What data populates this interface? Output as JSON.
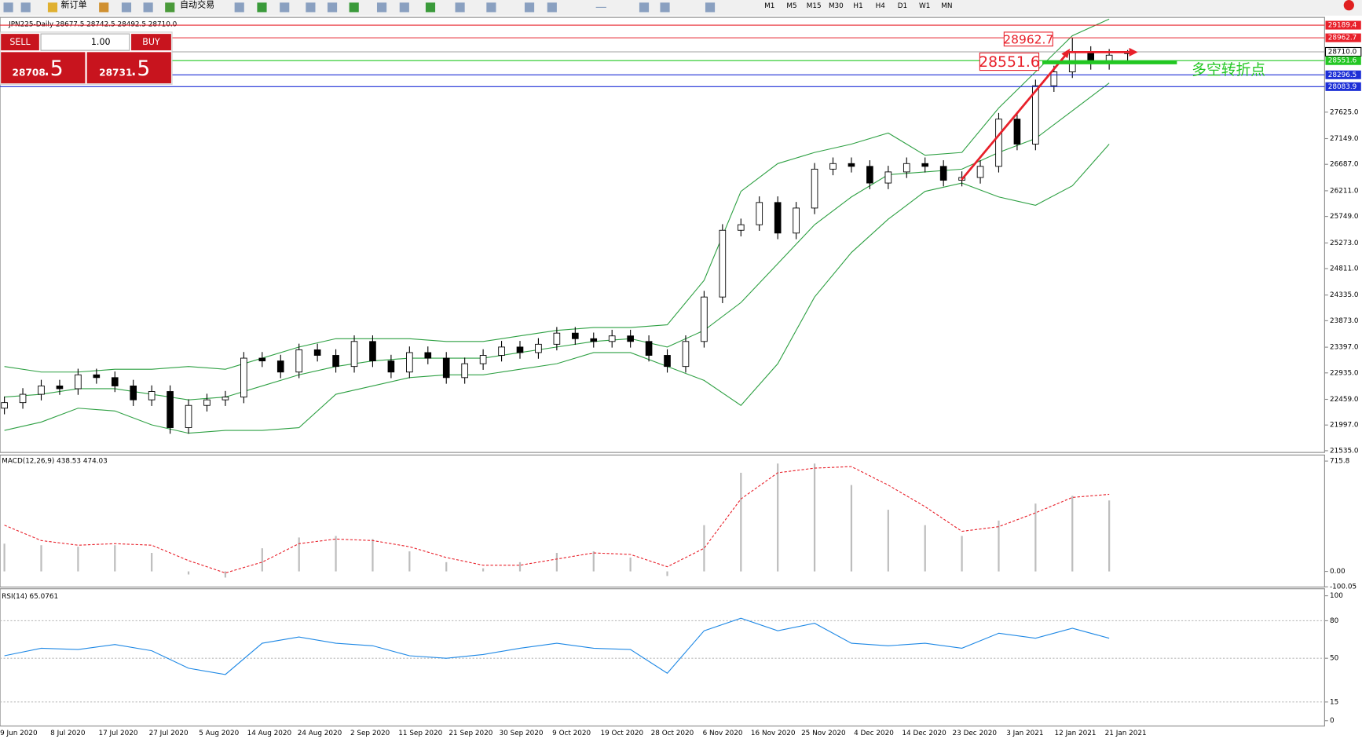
{
  "toolbar": {
    "new_order": "新订单",
    "auto_trading": "自动交易",
    "timeframes": [
      "M1",
      "M5",
      "M15",
      "M30",
      "H1",
      "H4",
      "D1",
      "W1",
      "MN"
    ]
  },
  "trade_panel": {
    "sell": "SELL",
    "lot": "1.00",
    "buy": "BUY",
    "bid_main": "28708",
    "bid_frac": ".5",
    "ask_main": "28731",
    "ask_frac": ".5"
  },
  "chart_data": [
    {
      "type": "candlestick",
      "title": "JPN225-Daily  28677.5 28742.5 28492.5 28710.0",
      "xtick_labels": [
        "9 Jun 2020",
        "8 Jul 2020",
        "17 Jul 2020",
        "27 Jul 2020",
        "5 Aug 2020",
        "14 Aug 2020",
        "24 Aug 2020",
        "2 Sep 2020",
        "11 Sep 2020",
        "21 Sep 2020",
        "30 Sep 2020",
        "9 Oct 2020",
        "19 Oct 2020",
        "28 Oct 2020",
        "6 Nov 2020",
        "16 Nov 2020",
        "25 Nov 2020",
        "4 Dec 2020",
        "14 Dec 2020",
        "23 Dec 2020",
        "3 Jan 2021",
        "12 Jan 2021",
        "21 Jan 2021"
      ],
      "ohlc": [
        [
          22300,
          22510,
          22190,
          22400
        ],
        [
          22400,
          22660,
          22290,
          22550
        ],
        [
          22550,
          22810,
          22440,
          22700
        ],
        [
          22700,
          22810,
          22540,
          22650
        ],
        [
          22650,
          23010,
          22540,
          22900
        ],
        [
          22900,
          23010,
          22740,
          22850
        ],
        [
          22850,
          22960,
          22590,
          22700
        ],
        [
          22700,
          22810,
          22340,
          22450
        ],
        [
          22450,
          22710,
          22340,
          22600
        ],
        [
          22600,
          22710,
          21840,
          21950
        ],
        [
          21950,
          22460,
          21840,
          22350
        ],
        [
          22350,
          22560,
          22240,
          22450
        ],
        [
          22450,
          22610,
          22340,
          22500
        ],
        [
          22500,
          23310,
          22390,
          23200
        ],
        [
          23200,
          23310,
          23040,
          23150
        ],
        [
          23150,
          23260,
          22840,
          22950
        ],
        [
          22950,
          23460,
          22840,
          23350
        ],
        [
          23350,
          23460,
          23140,
          23250
        ],
        [
          23250,
          23360,
          22940,
          23050
        ],
        [
          23050,
          23610,
          22940,
          23500
        ],
        [
          23500,
          23610,
          23040,
          23150
        ],
        [
          23150,
          23260,
          22840,
          22950
        ],
        [
          22950,
          23410,
          22840,
          23300
        ],
        [
          23300,
          23410,
          23090,
          23200
        ],
        [
          23200,
          23310,
          22740,
          22850
        ],
        [
          22850,
          23210,
          22740,
          23100
        ],
        [
          23100,
          23360,
          22990,
          23250
        ],
        [
          23250,
          23510,
          23140,
          23400
        ],
        [
          23400,
          23510,
          23190,
          23300
        ],
        [
          23300,
          23560,
          23190,
          23450
        ],
        [
          23450,
          23760,
          23340,
          23650
        ],
        [
          23650,
          23760,
          23440,
          23550
        ],
        [
          23550,
          23660,
          23390,
          23500
        ],
        [
          23500,
          23710,
          23390,
          23600
        ],
        [
          23600,
          23710,
          23390,
          23500
        ],
        [
          23500,
          23610,
          23140,
          23250
        ],
        [
          23250,
          23360,
          22940,
          23050
        ],
        [
          23050,
          23610,
          22940,
          23500
        ],
        [
          23500,
          24410,
          23390,
          24300
        ],
        [
          24300,
          25610,
          24190,
          25500
        ],
        [
          25500,
          25710,
          25390,
          25600
        ],
        [
          25600,
          26110,
          25490,
          26000
        ],
        [
          26000,
          26110,
          25340,
          25450
        ],
        [
          25450,
          26010,
          25340,
          25900
        ],
        [
          25900,
          26710,
          25790,
          26600
        ],
        [
          26600,
          26810,
          26490,
          26700
        ],
        [
          26700,
          26810,
          26540,
          26650
        ],
        [
          26650,
          26760,
          26240,
          26350
        ],
        [
          26350,
          26660,
          26240,
          26550
        ],
        [
          26550,
          26810,
          26440,
          26700
        ],
        [
          26700,
          26810,
          26540,
          26650
        ],
        [
          26650,
          26760,
          26290,
          26400
        ],
        [
          26400,
          26560,
          26290,
          26450
        ],
        [
          26450,
          26760,
          26340,
          26650
        ],
        [
          26650,
          27610,
          26540,
          27500
        ],
        [
          27500,
          27610,
          26940,
          27050
        ],
        [
          27050,
          28210,
          26940,
          28100
        ],
        [
          28100,
          28460,
          27990,
          28350
        ],
        [
          28350,
          28960,
          28240,
          28700
        ],
        [
          28700,
          28810,
          28390,
          28500
        ],
        [
          28500,
          28760,
          28390,
          28650
        ],
        [
          28677.5,
          28742.5,
          28492.5,
          28710
        ]
      ],
      "band_color": "#2ea043",
      "upper": [
        23050,
        22950,
        22950,
        23000,
        23000,
        23050,
        23000,
        23200,
        23400,
        23550,
        23550,
        23550,
        23500,
        23500,
        23600,
        23700,
        23750,
        23750,
        23800,
        24600,
        26200,
        26700,
        26900,
        27050,
        27250,
        26850,
        26900,
        27700,
        28350,
        29000,
        29300
      ],
      "middle": [
        22500,
        22550,
        22650,
        22650,
        22550,
        22450,
        22500,
        22700,
        22900,
        23050,
        23150,
        23200,
        23200,
        23200,
        23300,
        23400,
        23500,
        23550,
        23400,
        23700,
        24200,
        24900,
        25600,
        26100,
        26500,
        26550,
        26600,
        26900,
        27150,
        27650,
        28150
      ],
      "lower": [
        21900,
        22050,
        22300,
        22250,
        22000,
        21850,
        21900,
        21900,
        21950,
        22550,
        22700,
        22850,
        22900,
        22900,
        23000,
        23100,
        23300,
        23300,
        23050,
        22800,
        22350,
        23100,
        24300,
        25100,
        25700,
        26200,
        26350,
        26100,
        25950,
        26300,
        27050
      ],
      "ylim": [
        21504,
        29330
      ],
      "yticks": [
        {
          "value": 21535,
          "label": "21535.0"
        },
        {
          "value": 21997,
          "label": "21997.0"
        },
        {
          "value": 22459,
          "label": "22459.0"
        },
        {
          "value": 22935,
          "label": "22935.0"
        },
        {
          "value": 23397,
          "label": "23397.0"
        },
        {
          "value": 23873,
          "label": "23873.0"
        },
        {
          "value": 24335,
          "label": "24335.0"
        },
        {
          "value": 24811,
          "label": "24811.0"
        },
        {
          "value": 25273,
          "label": "25273.0"
        },
        {
          "value": 25749,
          "label": "25749.0"
        },
        {
          "value": 26211,
          "label": "26211.0"
        },
        {
          "value": 26687,
          "label": "26687.0"
        },
        {
          "value": 27149,
          "label": "27149.0"
        },
        {
          "value": 27625,
          "label": "27625.0"
        }
      ],
      "levels": [
        {
          "value": 29189.4,
          "color": "#e8202a"
        },
        {
          "value": 28962.7,
          "color": "#e8202a"
        },
        {
          "value": 28710,
          "label": "28710.0",
          "color": "#a0a0a0"
        },
        {
          "value": 28551.6,
          "color": "#22c722"
        },
        {
          "value": 28296.5,
          "color": "#1d2fd6"
        },
        {
          "value": 28083.9,
          "color": "#1d2fd6"
        }
      ],
      "annotations": {
        "high": "28962.7",
        "pivot": "28551.6",
        "note": "多空转折点"
      }
    },
    {
      "type": "macd",
      "title": "MACD(12,26,9) 438.53 474.03",
      "histogram": [
        180,
        170,
        160,
        170,
        120,
        -20,
        -40,
        150,
        220,
        230,
        210,
        130,
        60,
        20,
        60,
        120,
        130,
        90,
        -30,
        300,
        640,
        700,
        700,
        560,
        400,
        300,
        230,
        330,
        440,
        490,
        460
      ],
      "signal": [
        300,
        200,
        170,
        180,
        170,
        70,
        -10,
        60,
        180,
        210,
        200,
        160,
        90,
        40,
        40,
        80,
        120,
        110,
        30,
        150,
        470,
        640,
        670,
        680,
        560,
        420,
        260,
        290,
        380,
        480,
        500
      ],
      "hist_color": "#bdbdbd",
      "signal_color": "#e8202a",
      "ylim": [
        -101.5,
        755
      ],
      "yticks": [
        715.8,
        {
          "value": 0,
          "label": "0.00"
        },
        -100.05
      ]
    },
    {
      "type": "rsi",
      "title": "RSI(14) 65.0761",
      "values": [
        52,
        58,
        57,
        61,
        56,
        42,
        37,
        62,
        67,
        62,
        60,
        52,
        50,
        53,
        58,
        62,
        58,
        57,
        38,
        72,
        82,
        72,
        78,
        62,
        60,
        62,
        58,
        70,
        66,
        74,
        66
      ],
      "color": "#1e88e5",
      "ylim": [
        -4.2,
        105.6
      ],
      "yticks": [
        0,
        15,
        50,
        80,
        100
      ]
    }
  ]
}
